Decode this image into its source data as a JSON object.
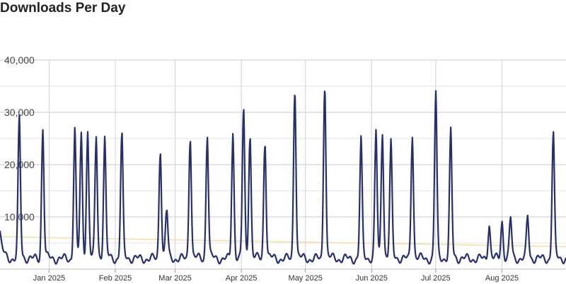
{
  "page": {
    "title": "Downloads Per Day"
  },
  "chart_data": {
    "type": "line",
    "title": "Downloads Per Day",
    "xlabel": "",
    "ylabel": "",
    "x_range": [
      "2024-12-09",
      "2025-08-31"
    ],
    "ylim": [
      0,
      40000
    ],
    "grid": true,
    "y_ticks": [
      {
        "value": 10000,
        "label": "10,000"
      },
      {
        "value": 20000,
        "label": "20,000"
      },
      {
        "value": 30000,
        "label": "30,000"
      },
      {
        "value": 40000,
        "label": "40,000"
      }
    ],
    "x_ticks": [
      {
        "date": "2025-01-01",
        "label": "Jan 2025"
      },
      {
        "date": "2025-02-01",
        "label": "Feb 2025"
      },
      {
        "date": "2025-03-01",
        "label": "Mar 2025"
      },
      {
        "date": "2025-04-01",
        "label": "Apr 2025"
      },
      {
        "date": "2025-05-01",
        "label": "May 2025"
      },
      {
        "date": "2025-06-01",
        "label": "Jun 2025"
      },
      {
        "date": "2025-07-01",
        "label": "Jul 2025"
      },
      {
        "date": "2025-08-01",
        "label": "Aug 2025"
      }
    ],
    "baseline": 2000,
    "series": [
      {
        "color": "#27306e",
        "start": {
          "date": "2024-12-09",
          "value": 7000
        },
        "peaks": [
          {
            "date": "2024-12-18",
            "value": 27800
          },
          {
            "date": "2024-12-29",
            "value": 25800
          },
          {
            "date": "2025-01-13",
            "value": 25600
          },
          {
            "date": "2025-01-16",
            "value": 24200
          },
          {
            "date": "2025-01-19",
            "value": 24900
          },
          {
            "date": "2025-01-23",
            "value": 24000
          },
          {
            "date": "2025-01-27",
            "value": 23500
          },
          {
            "date": "2025-02-04",
            "value": 24900
          },
          {
            "date": "2025-02-22",
            "value": 22300
          },
          {
            "date": "2025-02-25",
            "value": 10800
          },
          {
            "date": "2025-03-08",
            "value": 24900
          },
          {
            "date": "2025-03-16",
            "value": 24900
          },
          {
            "date": "2025-03-28",
            "value": 24700
          },
          {
            "date": "2025-04-02",
            "value": 29600
          },
          {
            "date": "2025-04-05",
            "value": 24900
          },
          {
            "date": "2025-04-12",
            "value": 24000
          },
          {
            "date": "2025-04-26",
            "value": 34200
          },
          {
            "date": "2025-05-10",
            "value": 35000
          },
          {
            "date": "2025-05-27",
            "value": 23400
          },
          {
            "date": "2025-06-03",
            "value": 24900
          },
          {
            "date": "2025-06-06",
            "value": 25100
          },
          {
            "date": "2025-06-10",
            "value": 22500
          },
          {
            "date": "2025-06-20",
            "value": 24800
          },
          {
            "date": "2025-07-01",
            "value": 32500
          },
          {
            "date": "2025-07-08",
            "value": 25000
          },
          {
            "date": "2025-07-26",
            "value": 8200
          },
          {
            "date": "2025-08-01",
            "value": 8800
          },
          {
            "date": "2025-08-05",
            "value": 9200
          },
          {
            "date": "2025-08-13",
            "value": 9500
          },
          {
            "date": "2025-08-25",
            "value": 25100
          }
        ]
      },
      {
        "color": "#f3dfa9",
        "trend": [
          {
            "date": "2024-12-09",
            "value": 6200
          },
          {
            "date": "2025-08-31",
            "value": 4300
          }
        ]
      }
    ]
  }
}
